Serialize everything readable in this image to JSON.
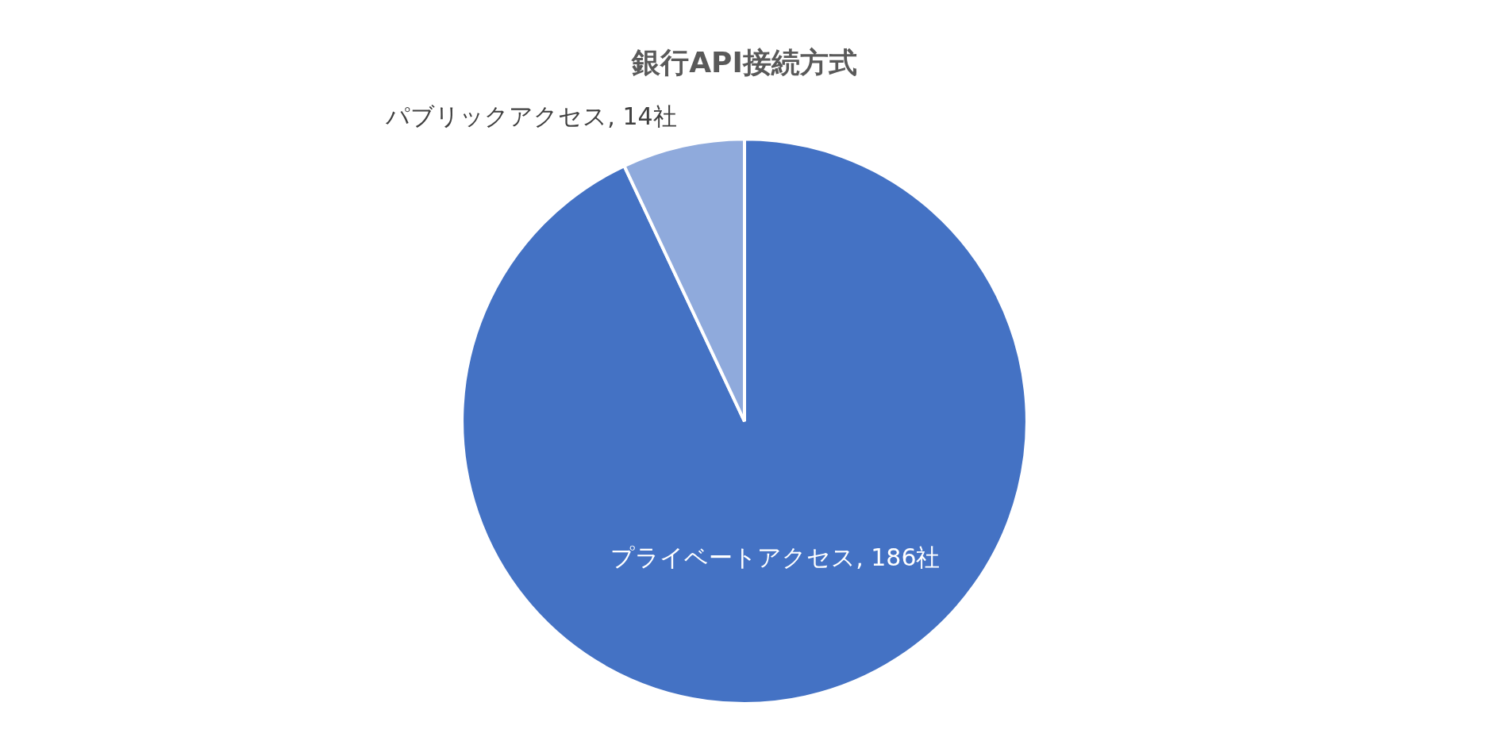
{
  "chart_data": {
    "type": "pie",
    "title": "銀行API接続方式",
    "categories": [
      "プライベートアクセス",
      "パブリックアクセス"
    ],
    "values": [
      186,
      14
    ],
    "colors": [
      "#4472c4",
      "#8faadc"
    ],
    "value_labels": [
      "186社",
      "14社"
    ],
    "legend": false
  }
}
